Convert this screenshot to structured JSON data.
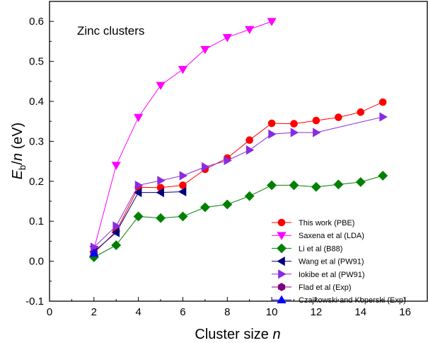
{
  "chart_data": {
    "type": "line",
    "title": "",
    "annotation": "Zinc clusters",
    "xlabel": "Cluster size",
    "xlabel_italic": "n",
    "ylabel_main": "E",
    "ylabel_sub": "b",
    "ylabel_rest": "/",
    "ylabel_italic": "n",
    "ylabel_unit": " (eV)",
    "xlim": [
      0,
      17
    ],
    "ylim": [
      -0.1,
      0.65
    ],
    "xticks": [
      "0",
      "2",
      "4",
      "6",
      "8",
      "10",
      "12",
      "14",
      "16"
    ],
    "yticks": [
      "-0.1",
      "0.0",
      "0.1",
      "0.2",
      "0.3",
      "0.4",
      "0.5",
      "0.6"
    ],
    "legend_position": "bottom-right",
    "series": [
      {
        "name": "This work (PBE)",
        "color": "#ff0000",
        "marker": "circle",
        "x": [
          2,
          3,
          4,
          5,
          6,
          7,
          8,
          9,
          10,
          11,
          12,
          13,
          14,
          15
        ],
        "y": [
          0.021,
          0.075,
          0.185,
          0.184,
          0.19,
          0.23,
          0.258,
          0.303,
          0.345,
          0.344,
          0.352,
          0.36,
          0.373,
          0.398
        ]
      },
      {
        "name": "Saxena et al (LDA)",
        "color": "#ff00ff",
        "marker": "triangle-down",
        "x": [
          2,
          3,
          4,
          5,
          6,
          7,
          8,
          9,
          10
        ],
        "y": [
          0.03,
          0.24,
          0.36,
          0.44,
          0.48,
          0.53,
          0.56,
          0.58,
          0.6
        ]
      },
      {
        "name": "Li et al (B88)",
        "color": "#008000",
        "marker": "diamond",
        "x": [
          2,
          3,
          4,
          5,
          6,
          7,
          8,
          9,
          10,
          11,
          12,
          13,
          14,
          15
        ],
        "y": [
          0.01,
          0.04,
          0.112,
          0.108,
          0.112,
          0.135,
          0.142,
          0.163,
          0.19,
          0.19,
          0.186,
          0.192,
          0.198,
          0.214
        ]
      },
      {
        "name": "Wang et al (PW91)",
        "color": "#000080",
        "marker": "triangle-left",
        "x": [
          2,
          3,
          4,
          5,
          6
        ],
        "y": [
          0.024,
          0.072,
          0.172,
          0.172,
          0.174
        ]
      },
      {
        "name": "Iokibe et al  (PW91)",
        "color": "#8a2be2",
        "marker": "triangle-right",
        "x": [
          2,
          3,
          4,
          5,
          6,
          7,
          8,
          9,
          10,
          11,
          12,
          15
        ],
        "y": [
          0.035,
          0.088,
          0.19,
          0.202,
          0.214,
          0.236,
          0.252,
          0.278,
          0.318,
          0.322,
          0.322,
          0.361
        ]
      },
      {
        "name": "Flad et al (Exp)",
        "color": "#800080",
        "marker": "hexagon",
        "x": [
          2
        ],
        "y": [
          0.02
        ]
      },
      {
        "name": "Czajkowski and Koperski (Exp)",
        "color": "#0000ff",
        "marker": "triangle-up",
        "x": [
          2
        ],
        "y": [
          0.02
        ]
      }
    ]
  }
}
